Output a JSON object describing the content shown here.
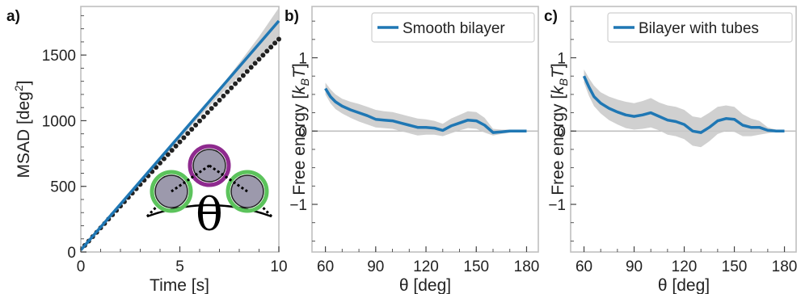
{
  "colors": {
    "line": "#1f77b4",
    "band": "#c8c8c8",
    "points": "#222222",
    "zero": "#bfbfbf",
    "ring_center": "#8e2a8e",
    "ring_side": "#5cc35c",
    "bead": "#9c99ac"
  },
  "chart_data": [
    {
      "panel": "a)",
      "type": "line",
      "xlabel": "Time [s]",
      "ylabel_main": "MSAD [deg",
      "ylabel_sup": "2",
      "ylabel_end": "]",
      "xlim": [
        0,
        10
      ],
      "ylim": [
        0,
        1870
      ],
      "xticks": [
        0,
        5,
        10
      ],
      "yticks": [
        0,
        500,
        1000,
        1500
      ],
      "fit_line": {
        "x": [
          0,
          10
        ],
        "y": [
          15,
          1760
        ]
      },
      "band": {
        "x": [
          0,
          2,
          4,
          6,
          7,
          8,
          9,
          10
        ],
        "lower": [
          15,
          350,
          690,
          1030,
          1190,
          1340,
          1480,
          1620
        ],
        "upper": [
          15,
          355,
          700,
          1055,
          1245,
          1440,
          1640,
          1860
        ]
      },
      "points": {
        "x_start": 0.2,
        "x_end": 10.0,
        "step": 0.2,
        "slope": 168.5,
        "intercept": 16,
        "curve": -0.8
      },
      "inset_symbol": "θ"
    },
    {
      "panel": "b)",
      "type": "line",
      "xlabel": "θ [deg]",
      "ylabel": "Free energy [",
      "ylabel_k": "k",
      "ylabel_sub": "B",
      "ylabel_T": "T",
      "ylabel_end": "]",
      "xlim": [
        52,
        187
      ],
      "ylim": [
        -1.65,
        1.7
      ],
      "xticks": [
        60,
        90,
        120,
        150,
        180
      ],
      "yticks": [
        -1,
        0,
        1
      ],
      "ytick_labels": [
        "−1",
        "0",
        "1"
      ],
      "legend": "Smooth bilayer",
      "series": [
        {
          "name": "Smooth bilayer",
          "x": [
            60,
            63,
            66,
            70,
            75,
            80,
            85,
            90,
            95,
            100,
            105,
            110,
            115,
            120,
            125,
            130,
            135,
            140,
            145,
            150,
            155,
            160,
            165,
            170,
            175,
            180
          ],
          "y": [
            0.58,
            0.47,
            0.4,
            0.34,
            0.29,
            0.25,
            0.21,
            0.16,
            0.15,
            0.14,
            0.11,
            0.08,
            0.05,
            0.05,
            0.04,
            0.01,
            0.07,
            0.11,
            0.15,
            0.14,
            0.08,
            -0.02,
            -0.01,
            0.0,
            0.0,
            0.0
          ],
          "lower": [
            0.5,
            0.38,
            0.3,
            0.24,
            0.18,
            0.13,
            0.09,
            0.05,
            0.04,
            0.03,
            0.0,
            -0.03,
            -0.06,
            -0.05,
            -0.05,
            -0.07,
            -0.03,
            0.01,
            0.04,
            0.03,
            -0.02,
            -0.06,
            -0.04,
            -0.02,
            -0.01,
            0.0
          ],
          "upper": [
            0.66,
            0.57,
            0.5,
            0.44,
            0.4,
            0.37,
            0.33,
            0.29,
            0.27,
            0.26,
            0.23,
            0.2,
            0.17,
            0.16,
            0.14,
            0.1,
            0.17,
            0.22,
            0.27,
            0.26,
            0.18,
            0.03,
            0.02,
            0.02,
            0.01,
            0.0
          ]
        }
      ]
    },
    {
      "panel": "c)",
      "type": "line",
      "xlabel": "θ [deg]",
      "ylabel": "Free energy [",
      "ylabel_k": "k",
      "ylabel_sub": "B",
      "ylabel_T": "T",
      "ylabel_end": "]",
      "xlim": [
        52,
        187
      ],
      "ylim": [
        -1.65,
        1.7
      ],
      "xticks": [
        60,
        90,
        120,
        150,
        180
      ],
      "yticks": [
        -1,
        0,
        1
      ],
      "ytick_labels": [
        "−1",
        "0",
        "1"
      ],
      "legend": "Bilayer with tubes",
      "series": [
        {
          "name": "Bilayer with tubes",
          "x": [
            60,
            63,
            66,
            70,
            75,
            80,
            85,
            90,
            95,
            100,
            105,
            110,
            115,
            120,
            125,
            130,
            135,
            140,
            145,
            150,
            155,
            160,
            165,
            170,
            175,
            180
          ],
          "y": [
            0.75,
            0.6,
            0.47,
            0.38,
            0.31,
            0.26,
            0.22,
            0.2,
            0.22,
            0.25,
            0.2,
            0.15,
            0.13,
            0.09,
            0.0,
            -0.02,
            0.05,
            0.14,
            0.17,
            0.16,
            0.08,
            0.05,
            0.05,
            0.01,
            0.0,
            0.0
          ],
          "lower": [
            0.66,
            0.48,
            0.34,
            0.24,
            0.15,
            0.09,
            0.04,
            0.02,
            0.03,
            0.05,
            0.01,
            -0.05,
            -0.07,
            -0.11,
            -0.2,
            -0.22,
            -0.14,
            -0.04,
            0.0,
            -0.01,
            -0.07,
            -0.07,
            -0.05,
            -0.03,
            -0.01,
            0.0
          ],
          "upper": [
            0.84,
            0.72,
            0.62,
            0.53,
            0.47,
            0.43,
            0.4,
            0.38,
            0.41,
            0.45,
            0.39,
            0.35,
            0.33,
            0.29,
            0.2,
            0.18,
            0.25,
            0.33,
            0.35,
            0.33,
            0.23,
            0.17,
            0.14,
            0.05,
            0.02,
            0.0
          ]
        }
      ]
    }
  ]
}
